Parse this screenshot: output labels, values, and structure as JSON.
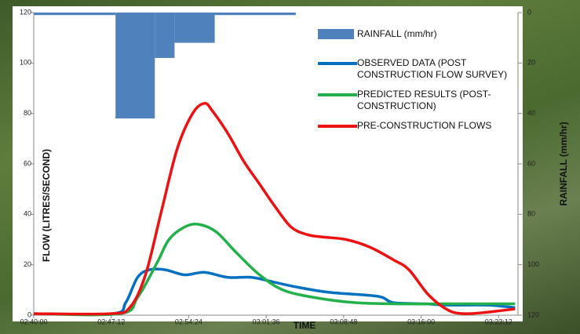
{
  "chart_data": {
    "type": "combo",
    "xlabel": "TIME",
    "ylabel": "FLOW (LITRES/SECOND)",
    "y2label": "RAINFALL (mm/hr)",
    "xlim": [
      9600,
      12300
    ],
    "xticks": [
      {
        "value": 9600,
        "label": "02:40:00"
      },
      {
        "value": 10032,
        "label": "02:47:12"
      },
      {
        "value": 10464,
        "label": "02:54:24"
      },
      {
        "value": 10896,
        "label": "03:01:36"
      },
      {
        "value": 11328,
        "label": "03:08:48"
      },
      {
        "value": 11760,
        "label": "03:16:00"
      },
      {
        "value": 12192,
        "label": "03:23:12"
      }
    ],
    "ylim": [
      0,
      120
    ],
    "yticks": [
      0,
      20,
      40,
      60,
      80,
      100,
      120
    ],
    "y2lim": [
      0,
      120
    ],
    "y2_inverted": true,
    "y2ticks": [
      0,
      20,
      40,
      60,
      80,
      100,
      120
    ],
    "legend": "upper right",
    "series": [
      {
        "name": "RAINFALL (mm/hr)",
        "type": "bar",
        "axis": "y2",
        "color": "#4f81bd",
        "bins": [
          9600,
          10056,
          10275,
          10385,
          10609,
          11061
        ],
        "values": [
          1,
          42,
          18,
          12,
          1
        ]
      },
      {
        "name": "OBSERVED DATA (POST CONSTRUCTION FLOW SURVEY)",
        "type": "line",
        "color": "#0070c0",
        "x": [
          9600,
          10040,
          10113,
          10179,
          10245,
          10333,
          10442,
          10552,
          10683,
          10815,
          10946,
          11078,
          11254,
          11517,
          11604,
          11780,
          11911,
          12131,
          12284
        ],
        "values": [
          0.6,
          0.6,
          5,
          15,
          18,
          18,
          16,
          17,
          15,
          15,
          13,
          11,
          9,
          7.5,
          5,
          4.5,
          4,
          4,
          3
        ]
      },
      {
        "name": "PREDICTED RESULTS (POST-CONSTRUCTION)",
        "type": "line",
        "color": "#22b04b",
        "x": [
          9600,
          10080,
          10179,
          10289,
          10354,
          10442,
          10521,
          10618,
          10727,
          10859,
          10990,
          11166,
          11385,
          11604,
          11868,
          12284
        ],
        "values": [
          0.6,
          0.6,
          7,
          21,
          30,
          35,
          36,
          33,
          25,
          16,
          10,
          7,
          5,
          4.5,
          4.5,
          4.5
        ]
      },
      {
        "name": "PRE-CONSTRUCTION FLOWS",
        "type": "line",
        "color": "#ee1111",
        "x": [
          9600,
          10025,
          10135,
          10223,
          10311,
          10400,
          10486,
          10552,
          10596,
          10683,
          10771,
          10859,
          10946,
          11034,
          11122,
          11210,
          11341,
          11473,
          11604,
          11692,
          11802,
          11911,
          11999,
          12131,
          12284
        ],
        "values": [
          0.6,
          0.6,
          3,
          16,
          41,
          66,
          80,
          84,
          81,
          72,
          61,
          52,
          43,
          35,
          32,
          31,
          30,
          27,
          22,
          18,
          8,
          2,
          0.6,
          1.2,
          2.5
        ]
      }
    ]
  }
}
